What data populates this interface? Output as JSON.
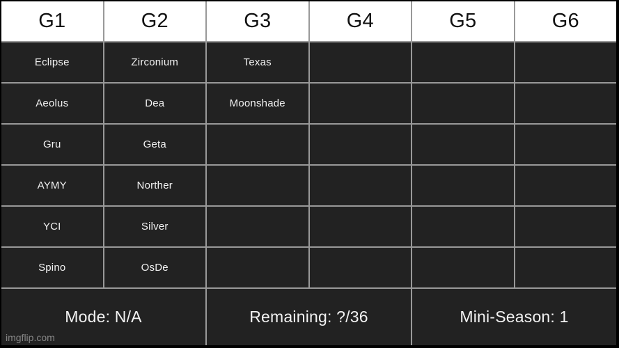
{
  "chart_data": {
    "type": "table",
    "title": "",
    "columns": [
      "G1",
      "G2",
      "G3",
      "G4",
      "G5",
      "G6"
    ],
    "rows": [
      [
        "Eclipse",
        "Zirconium",
        "Texas",
        "",
        "",
        ""
      ],
      [
        "Aeolus",
        "Dea",
        "Moonshade",
        "",
        "",
        ""
      ],
      [
        "Gru",
        "Geta",
        "",
        "",
        "",
        ""
      ],
      [
        "AYMY",
        "Norther",
        "",
        "",
        "",
        ""
      ],
      [
        "YCI",
        "Silver",
        "",
        "",
        "",
        ""
      ],
      [
        "Spino",
        "OsDe",
        "",
        "",
        "",
        ""
      ]
    ],
    "footer": [
      "Mode: N/A",
      "Remaining: ?/36",
      "Mini-Season: 1"
    ],
    "layout": {
      "header_row": "white background, black text",
      "body_rows": "dark background, white text",
      "footer_cells_span": 2,
      "grid": "on"
    }
  },
  "stats": {
    "mode": "N/A",
    "remaining": "?/36",
    "mini_season": "1"
  },
  "watermark": "imgflip.com",
  "colors": {
    "outer_border": "#000000",
    "grid_line": "#999999",
    "header_bg": "#ffffff",
    "header_text": "#111111",
    "cell_bg": "#222222",
    "cell_text": "#f2f2f2",
    "watermark_text": "#858585"
  }
}
